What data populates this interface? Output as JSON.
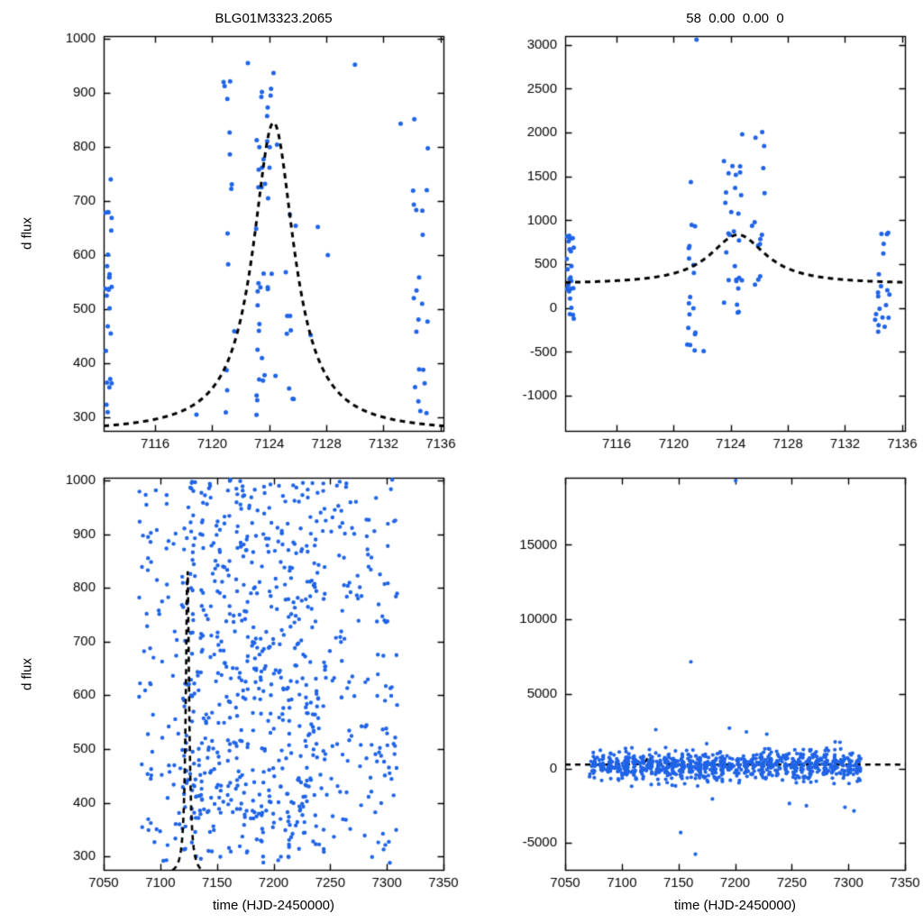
{
  "figure": {
    "background": "#ffffff",
    "frame_color": "#000000",
    "text_color": "#000000"
  },
  "chart_data": [
    {
      "id": "top-left",
      "type": "scatter",
      "title": "BLG01M3323.2065",
      "xlabel": "",
      "ylabel": "d flux",
      "xlim": [
        7112.4,
        7136.2
      ],
      "ylim": [
        275,
        1005
      ],
      "xticks": [
        7116,
        7120,
        7124,
        7128,
        7132,
        7136
      ],
      "yticks": [
        300,
        400,
        500,
        600,
        700,
        800,
        900,
        1000
      ],
      "grid": false,
      "legend": "none",
      "point_color": "#1f63e6",
      "point_radius": 2.5,
      "model": {
        "shape": "lorentzian",
        "baseline": 272,
        "peak": 845,
        "t0": 7124.3,
        "width": 1.75,
        "style": "dashed",
        "color": "#000000",
        "line_width": 3,
        "under": false
      },
      "clusters": [
        {
          "x": 7112.75,
          "xs": 0.3,
          "ymin": 298,
          "ymax": 750,
          "n": 26,
          "seed": 11
        },
        {
          "x": 7121.2,
          "xs": 0.35,
          "ymin": 300,
          "ymax": 960,
          "n": 13,
          "seed": 12
        },
        {
          "x": 7123.8,
          "xs": 0.75,
          "ymin": 300,
          "ymax": 958,
          "n": 40,
          "seed": 13
        },
        {
          "x": 7125.5,
          "xs": 0.4,
          "ymin": 330,
          "ymax": 700,
          "n": 10,
          "seed": 14
        },
        {
          "x": 7134.6,
          "xs": 0.55,
          "ymin": 300,
          "ymax": 880,
          "n": 22,
          "seed": 15
        }
      ],
      "points": [
        [
          7120.8,
          920
        ],
        [
          7122.5,
          955
        ],
        [
          7127.4,
          652
        ],
        [
          7128.1,
          600
        ],
        [
          7130.0,
          952
        ],
        [
          7126.9,
          452
        ],
        [
          7133.2,
          843
        ],
        [
          7118.9,
          305
        ]
      ]
    },
    {
      "id": "top-right",
      "type": "scatter",
      "title": "58  0.00  0.00  0",
      "xlabel": "",
      "ylabel": "",
      "xlim": [
        7112.4,
        7136.2
      ],
      "ylim": [
        -1400,
        3100
      ],
      "xticks": [
        7116,
        7120,
        7124,
        7128,
        7132,
        7136
      ],
      "yticks": [
        -1000,
        -500,
        0,
        500,
        1000,
        1500,
        2000,
        2500,
        3000
      ],
      "grid": false,
      "legend": "none",
      "point_color": "#1f63e6",
      "point_radius": 2.5,
      "model": {
        "shape": "lorentzian",
        "baseline": 270,
        "peak": 835,
        "t0": 7124.5,
        "width": 2.4,
        "style": "dashed",
        "color": "#000000",
        "line_width": 3,
        "under": false
      },
      "clusters": [
        {
          "x": 7112.75,
          "xs": 0.3,
          "ymin": -130,
          "ymax": 900,
          "n": 24,
          "seed": 21
        },
        {
          "x": 7121.3,
          "xs": 0.35,
          "ymin": -520,
          "ymax": 1660,
          "n": 18,
          "seed": 22
        },
        {
          "x": 7124.1,
          "xs": 0.7,
          "ymin": -60,
          "ymax": 1700,
          "n": 28,
          "seed": 23
        },
        {
          "x": 7125.9,
          "xs": 0.5,
          "ymin": 100,
          "ymax": 2010,
          "n": 13,
          "seed": 24
        },
        {
          "x": 7134.6,
          "xs": 0.55,
          "ymin": -330,
          "ymax": 950,
          "n": 20,
          "seed": 25
        }
      ],
      "points": [
        [
          7121.6,
          3060
        ],
        [
          7124.8,
          1980
        ],
        [
          7126.2,
          2005
        ],
        [
          7122.1,
          -490
        ],
        [
          7113.0,
          -120
        ]
      ]
    },
    {
      "id": "bottom-left",
      "type": "scatter",
      "title": "",
      "xlabel": "time (HJD-2450000)",
      "ylabel": "d flux",
      "xlim": [
        7050,
        7350
      ],
      "ylim": [
        275,
        1005
      ],
      "xticks": [
        7050,
        7100,
        7150,
        7200,
        7250,
        7300,
        7350
      ],
      "yticks": [
        300,
        400,
        500,
        600,
        700,
        800,
        900,
        1000
      ],
      "grid": false,
      "legend": "none",
      "point_color": "#1f63e6",
      "point_radius": 2.2,
      "model": {
        "shape": "lorentzian",
        "baseline": 265,
        "peak": 843,
        "t0": 7124,
        "width": 1.7,
        "style": "dashed",
        "color": "#000000",
        "line_width": 2.6,
        "under": false
      },
      "bands": [
        {
          "x0": 7080,
          "x1": 7310,
          "stripes": 30,
          "xjit": 2.2,
          "n": 520,
          "y": {
            "mode": "uniform",
            "min": 288,
            "max": 1002
          },
          "seed": 31
        },
        {
          "x0": 7118,
          "x1": 7240,
          "stripes": 16,
          "xjit": 2.2,
          "n": 330,
          "y": {
            "mode": "uniform",
            "min": 288,
            "max": 1002
          },
          "seed": 32
        }
      ],
      "points": []
    },
    {
      "id": "bottom-right",
      "type": "scatter",
      "title": "",
      "xlabel": "time (HJD-2450000)",
      "ylabel": "",
      "xlim": [
        7050,
        7350
      ],
      "ylim": [
        -6800,
        19500
      ],
      "xticks": [
        7050,
        7100,
        7150,
        7200,
        7250,
        7300,
        7350
      ],
      "yticks": [
        -5000,
        0,
        5000,
        10000,
        15000
      ],
      "grid": false,
      "legend": "none",
      "point_color": "#1f63e6",
      "point_radius": 2.1,
      "model": {
        "shape": "lorentzian",
        "baseline": 260,
        "peak": 840,
        "t0": 7124,
        "width": 2.4,
        "style": "dashed",
        "color": "#000000",
        "line_width": 2.6,
        "under": true
      },
      "bands": [
        {
          "x0": 7072,
          "x1": 7312,
          "stripes": 34,
          "xjit": 1.6,
          "n": 900,
          "y": {
            "mode": "gauss",
            "mean": 180,
            "sd": 480,
            "min": -1400,
            "max": 2050
          },
          "seed": 41
        }
      ],
      "points": [
        [
          7200.5,
          19300
        ],
        [
          7161,
          7150
        ],
        [
          7130,
          2600
        ],
        [
          7152,
          -4300
        ],
        [
          7165,
          -5750
        ],
        [
          7248,
          -2350
        ],
        [
          7263,
          -2500
        ],
        [
          7305,
          -2850
        ],
        [
          7297,
          -2600
        ],
        [
          7180,
          -2050
        ],
        [
          7210,
          2450
        ],
        [
          7195,
          2700
        ],
        [
          7228,
          2300
        ]
      ]
    }
  ]
}
